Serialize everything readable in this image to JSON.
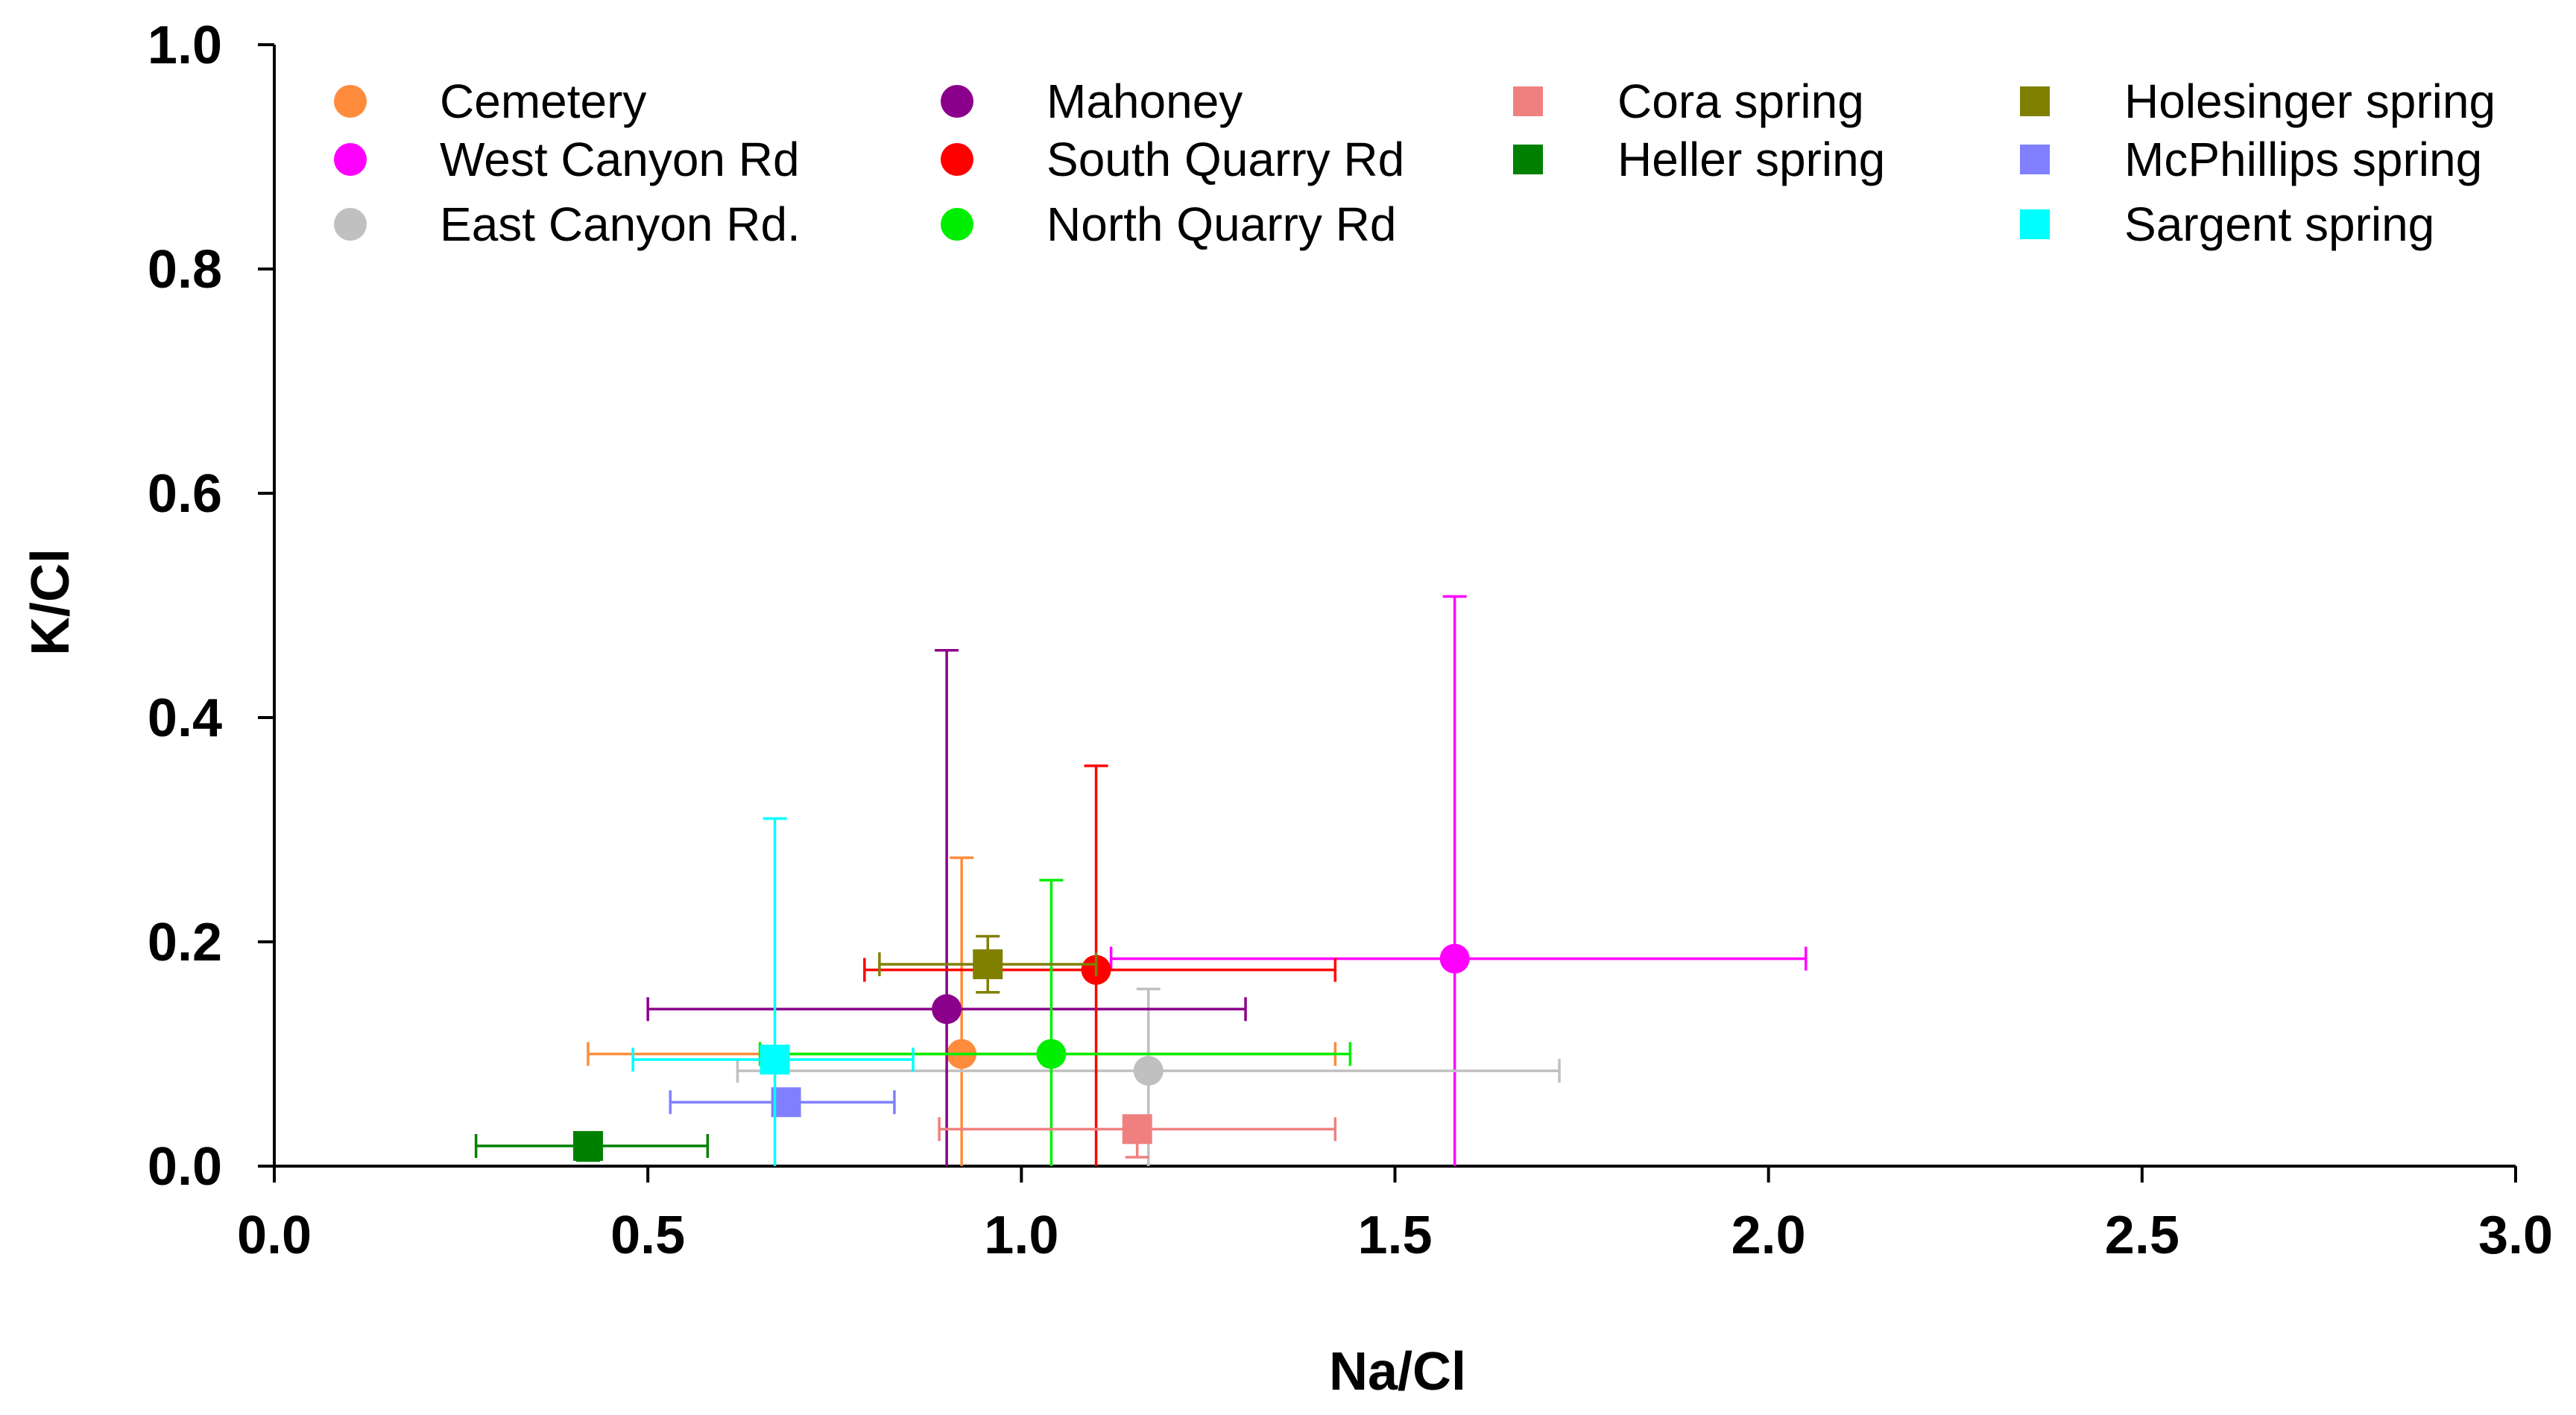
{
  "chart_data": {
    "type": "scatter",
    "title": "",
    "xlabel": "Na/Cl",
    "ylabel": "K/Cl",
    "xlim": [
      0,
      3.0
    ],
    "ylim": [
      0,
      1.0
    ],
    "grid": false,
    "legend_position": "top",
    "xticks": [
      {
        "value": 0.0,
        "label": "0.0"
      },
      {
        "value": 0.5,
        "label": "0.5"
      },
      {
        "value": 1.0,
        "label": "1.0"
      },
      {
        "value": 1.5,
        "label": "1.5"
      },
      {
        "value": 2.0,
        "label": "2.0"
      },
      {
        "value": 2.5,
        "label": "2.5"
      },
      {
        "value": 3.0,
        "label": "3.0"
      }
    ],
    "yticks": [
      {
        "value": 0.0,
        "label": "0.0"
      },
      {
        "value": 0.2,
        "label": "0.2"
      },
      {
        "value": 0.4,
        "label": "0.4"
      },
      {
        "value": 0.6,
        "label": "0.6"
      },
      {
        "value": 0.8,
        "label": "0.8"
      },
      {
        "value": 1.0,
        "label": "1.0"
      }
    ],
    "series": [
      {
        "name": "Cemetery",
        "marker": "circle",
        "color": "#ff8c3c",
        "x": 0.92,
        "y": 0.1,
        "xerr": [
          0.42,
          1.42
        ],
        "yerr": [
          0.0,
          0.275
        ]
      },
      {
        "name": "West Canyon Rd",
        "marker": "circle",
        "color": "#ff00ff",
        "x": 1.58,
        "y": 0.185,
        "xerr": [
          1.12,
          2.05
        ],
        "yerr": [
          0.0,
          0.508
        ]
      },
      {
        "name": "East Canyon Rd.",
        "marker": "circle",
        "color": "#c0c0c0",
        "x": 1.17,
        "y": 0.085,
        "xerr": [
          0.62,
          1.72
        ],
        "yerr": [
          0.0,
          0.158
        ]
      },
      {
        "name": "Mahoney",
        "marker": "circle",
        "color": "#8b008b",
        "x": 0.9,
        "y": 0.14,
        "xerr": [
          0.5,
          1.3
        ],
        "yerr": [
          0.0,
          0.46
        ]
      },
      {
        "name": "South Quarry Rd",
        "marker": "circle",
        "color": "#ff0000",
        "x": 1.1,
        "y": 0.175,
        "xerr": [
          0.79,
          1.42
        ],
        "yerr": [
          0.0,
          0.357
        ]
      },
      {
        "name": "North Quarry Rd",
        "marker": "circle",
        "color": "#00ee00",
        "x": 1.04,
        "y": 0.1,
        "xerr": [
          0.65,
          1.44
        ],
        "yerr": [
          0.0,
          0.255
        ]
      },
      {
        "name": "Cora spring",
        "marker": "square",
        "color": "#f08080",
        "x": 1.155,
        "y": 0.033,
        "xerr": [
          0.89,
          1.42
        ],
        "yerr": [
          0.008,
          0.045
        ]
      },
      {
        "name": "Heller spring",
        "marker": "square",
        "color": "#008000",
        "x": 0.42,
        "y": 0.018,
        "xerr": [
          0.27,
          0.58
        ],
        "yerr": [
          0.005,
          0.03
        ]
      },
      {
        "name": "Holesinger spring",
        "marker": "square",
        "color": "#808000",
        "x": 0.955,
        "y": 0.18,
        "xerr": [
          0.81,
          1.1
        ],
        "yerr": [
          0.155,
          0.205
        ]
      },
      {
        "name": "McPhillips spring",
        "marker": "square",
        "color": "#8080ff",
        "x": 0.685,
        "y": 0.057,
        "xerr": [
          0.53,
          0.83
        ],
        "yerr": [
          0.045,
          0.068
        ]
      },
      {
        "name": "Sargent spring",
        "marker": "square",
        "color": "#00ffff",
        "x": 0.67,
        "y": 0.095,
        "xerr": [
          0.48,
          0.855
        ],
        "yerr": [
          0.0,
          0.31
        ]
      }
    ]
  }
}
